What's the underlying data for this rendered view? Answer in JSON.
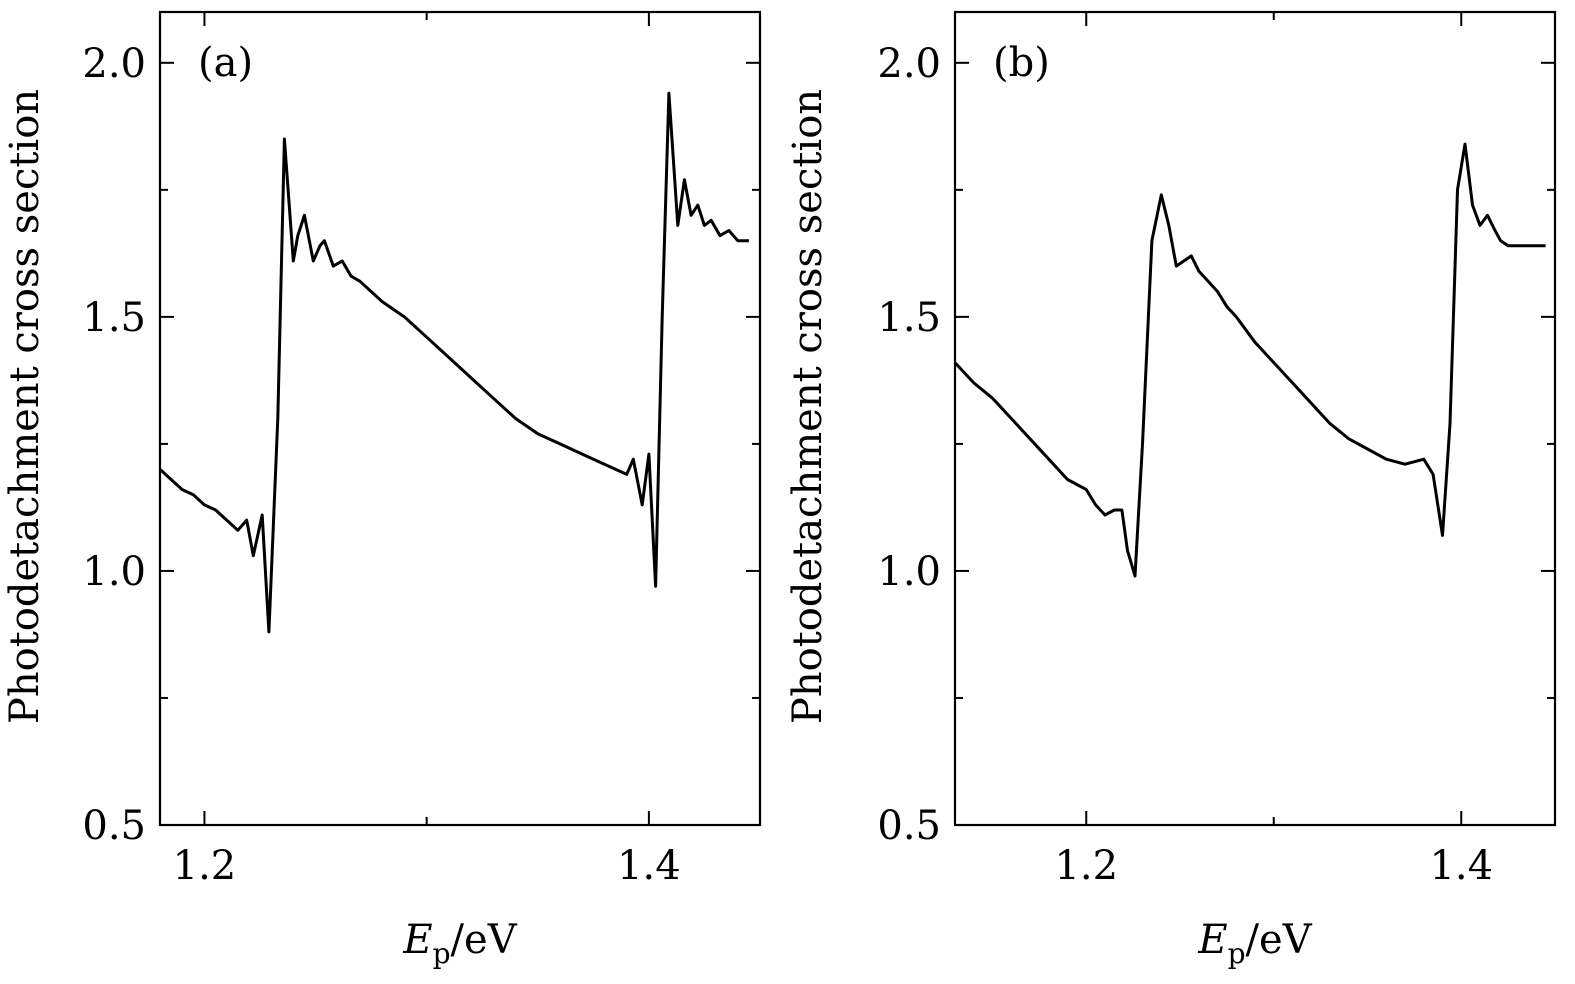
{
  "chart_data": [
    {
      "type": "line",
      "panel_label": "(a)",
      "ylabel": "Photodetachment cross section",
      "xlabel_main": "E",
      "xlabel_sub": "p",
      "xlabel_unit": "/eV",
      "xlim": [
        1.18,
        1.45
      ],
      "ylim": [
        0.5,
        2.1
      ],
      "yticks": [
        0.5,
        1.0,
        1.5,
        2.0
      ],
      "ytick_labels": [
        "0.5",
        "1.0",
        "1.5",
        "2.0"
      ],
      "xticks": [
        1.2,
        1.4
      ],
      "xtick_labels": [
        "1.2",
        "1.4"
      ],
      "x": [
        1.18,
        1.185,
        1.19,
        1.195,
        1.2,
        1.205,
        1.21,
        1.215,
        1.219,
        1.222,
        1.226,
        1.229,
        1.233,
        1.236,
        1.24,
        1.242,
        1.245,
        1.249,
        1.252,
        1.254,
        1.258,
        1.262,
        1.266,
        1.27,
        1.275,
        1.28,
        1.29,
        1.3,
        1.31,
        1.32,
        1.33,
        1.34,
        1.35,
        1.36,
        1.37,
        1.38,
        1.39,
        1.393,
        1.397,
        1.4,
        1.403,
        1.406,
        1.409,
        1.413,
        1.416,
        1.419,
        1.422,
        1.425,
        1.428,
        1.432,
        1.436,
        1.44,
        1.445
      ],
      "y": [
        1.2,
        1.18,
        1.16,
        1.15,
        1.13,
        1.12,
        1.1,
        1.08,
        1.1,
        1.03,
        1.11,
        0.88,
        1.3,
        1.85,
        1.61,
        1.66,
        1.7,
        1.61,
        1.64,
        1.65,
        1.6,
        1.61,
        1.58,
        1.57,
        1.55,
        1.53,
        1.5,
        1.46,
        1.42,
        1.38,
        1.34,
        1.3,
        1.27,
        1.25,
        1.23,
        1.21,
        1.19,
        1.22,
        1.13,
        1.23,
        0.97,
        1.5,
        1.94,
        1.68,
        1.77,
        1.7,
        1.72,
        1.68,
        1.69,
        1.66,
        1.67,
        1.65,
        1.65
      ]
    },
    {
      "type": "line",
      "panel_label": "(b)",
      "ylabel": "Photodetachment cross section",
      "xlabel_main": "E",
      "xlabel_sub": "p",
      "xlabel_unit": "/eV",
      "xlim": [
        1.13,
        1.45
      ],
      "ylim": [
        0.5,
        2.1
      ],
      "yticks": [
        0.5,
        1.0,
        1.5,
        2.0
      ],
      "ytick_labels": [
        "0.5",
        "1.0",
        "1.5",
        "2.0"
      ],
      "xticks": [
        1.2,
        1.4
      ],
      "xtick_labels": [
        "1.2",
        "1.4"
      ],
      "x": [
        1.13,
        1.14,
        1.15,
        1.16,
        1.17,
        1.18,
        1.19,
        1.2,
        1.205,
        1.21,
        1.215,
        1.219,
        1.222,
        1.226,
        1.23,
        1.235,
        1.24,
        1.244,
        1.248,
        1.252,
        1.256,
        1.26,
        1.265,
        1.27,
        1.275,
        1.28,
        1.29,
        1.3,
        1.31,
        1.32,
        1.33,
        1.34,
        1.35,
        1.36,
        1.37,
        1.38,
        1.385,
        1.39,
        1.394,
        1.398,
        1.402,
        1.406,
        1.41,
        1.414,
        1.418,
        1.421,
        1.425,
        1.43,
        1.435,
        1.44,
        1.445
      ],
      "y": [
        1.41,
        1.37,
        1.34,
        1.3,
        1.26,
        1.22,
        1.18,
        1.16,
        1.13,
        1.11,
        1.12,
        1.12,
        1.04,
        0.99,
        1.25,
        1.65,
        1.74,
        1.68,
        1.6,
        1.61,
        1.62,
        1.59,
        1.57,
        1.55,
        1.52,
        1.5,
        1.45,
        1.41,
        1.37,
        1.33,
        1.29,
        1.26,
        1.24,
        1.22,
        1.21,
        1.22,
        1.19,
        1.07,
        1.29,
        1.75,
        1.84,
        1.72,
        1.68,
        1.7,
        1.67,
        1.65,
        1.64,
        1.64,
        1.64,
        1.64,
        1.64
      ]
    }
  ]
}
